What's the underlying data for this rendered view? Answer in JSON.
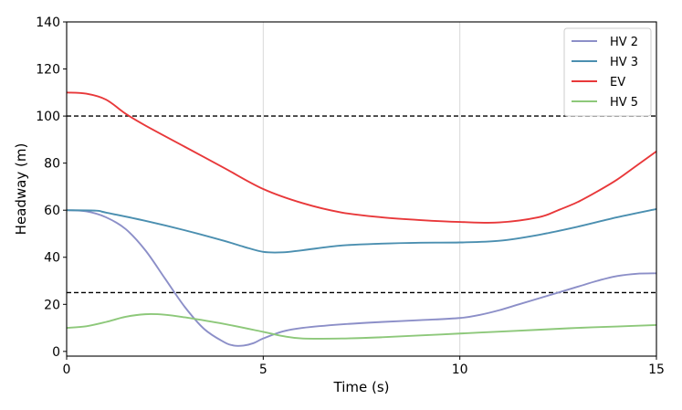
{
  "chart_data": {
    "type": "line",
    "title": "",
    "xlabel": "Time (s)",
    "ylabel": "Headway (m)",
    "xlim": [
      0,
      15
    ],
    "ylim": [
      -2,
      140
    ],
    "xticks": [
      "0",
      "5",
      "10",
      "15"
    ],
    "yticks": [
      "0",
      "20",
      "40",
      "60",
      "80",
      "100",
      "120",
      "140"
    ],
    "grid": "x-only",
    "legend_position": "top-right",
    "reference_lines": [
      {
        "y": 100,
        "style": "dashed",
        "color": "#000000"
      },
      {
        "y": 25,
        "style": "dashed",
        "color": "#000000"
      }
    ],
    "series": [
      {
        "name": "HV 2",
        "color": "#8c8fc8",
        "x": [
          0,
          0.5,
          1,
          1.5,
          2,
          2.5,
          3,
          3.5,
          4,
          4.25,
          4.5,
          4.75,
          5,
          5.5,
          6,
          7,
          8,
          9,
          10,
          10.5,
          11,
          11.5,
          12,
          12.5,
          13,
          13.5,
          14,
          14.5,
          15
        ],
        "y": [
          60,
          59.5,
          57,
          52,
          43,
          31,
          19,
          9.5,
          4,
          2.5,
          2.5,
          3.5,
          5.5,
          8.5,
          10,
          11.5,
          12.5,
          13.3,
          14.2,
          15.5,
          17.5,
          20,
          22.5,
          25,
          27.5,
          30,
          32,
          33,
          33.2
        ]
      },
      {
        "name": "HV 3",
        "color": "#4b8fb0",
        "x": [
          0,
          0.75,
          1,
          2,
          3,
          4,
          4.5,
          5,
          5.5,
          6,
          7,
          8,
          9,
          10,
          11,
          12,
          13,
          14,
          15
        ],
        "y": [
          60,
          59.8,
          59,
          55.5,
          51.5,
          47,
          44.5,
          42.3,
          42.1,
          43,
          45,
          45.8,
          46.2,
          46.3,
          47,
          49.5,
          53,
          57,
          60.5
        ]
      },
      {
        "name": "EV",
        "color": "#e8383a",
        "x": [
          0,
          0.5,
          1,
          1.5,
          2,
          3,
          4,
          5,
          6,
          7,
          8,
          9,
          10,
          11,
          12,
          12.5,
          13,
          13.5,
          14,
          14.5,
          15
        ],
        "y": [
          110,
          109.5,
          107,
          101,
          96,
          87,
          78,
          69,
          63,
          59,
          57,
          55.8,
          55,
          54.8,
          57,
          60,
          63.5,
          68,
          73,
          79,
          85
        ]
      },
      {
        "name": "HV 5",
        "color": "#8dc87a",
        "x": [
          0,
          0.5,
          1,
          1.5,
          2,
          2.5,
          3,
          4,
          5,
          5.5,
          6,
          7,
          8,
          9,
          10,
          11,
          12,
          13,
          14,
          15
        ],
        "y": [
          10,
          10.7,
          12.5,
          14.7,
          15.8,
          15.6,
          14.5,
          11.7,
          8.3,
          6.5,
          5.5,
          5.5,
          6,
          6.8,
          7.6,
          8.4,
          9.2,
          10,
          10.6,
          11.2
        ]
      }
    ]
  }
}
